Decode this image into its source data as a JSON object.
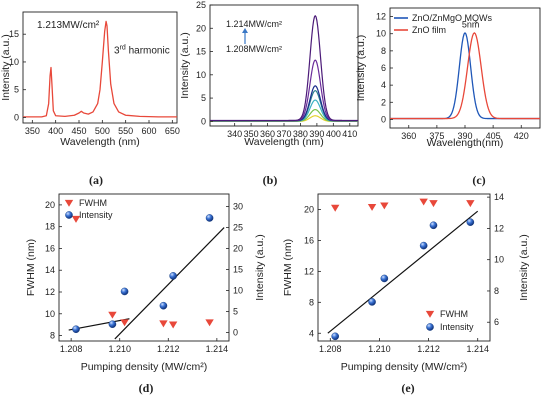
{
  "colors": {
    "red": "#e8483a",
    "blue": "#1f57b8",
    "navy": "#1a2c8c",
    "purple_dark": "#4b1a78",
    "purple": "#6a2c9a",
    "teal": "#2a7f8e",
    "cyan": "#3cb3c4",
    "green": "#79c24a",
    "yellow": "#e3d12c",
    "arrow": "#3a78c6"
  },
  "chart_data": [
    {
      "id": "a",
      "type": "line",
      "panel_label": "(a)",
      "xlabel": "Wavelength (nm)",
      "ylabel": "Intensity (a.u.)",
      "xlim": [
        330,
        660
      ],
      "ylim": [
        -1,
        19
      ],
      "xticks": [
        350,
        400,
        450,
        500,
        550,
        600,
        650
      ],
      "yticks": [
        0,
        5,
        10,
        15
      ],
      "annotation_power": "1.213MW/cm²",
      "annotation_harmonic_num": "3",
      "annotation_harmonic_sup": "rd",
      "annotation_harmonic_text": " harmonic",
      "series": [
        {
          "color": "#e8483a",
          "x": [
            330,
            370,
            380,
            385,
            388,
            390,
            392,
            395,
            400,
            420,
            440,
            450,
            455,
            460,
            470,
            480,
            490,
            495,
            500,
            505,
            508,
            510,
            513,
            518,
            525,
            535,
            550,
            580,
            620,
            660
          ],
          "y": [
            0.1,
            0.1,
            0.3,
            2.5,
            7.5,
            9.0,
            6.0,
            1.2,
            0.3,
            0.2,
            0.4,
            0.8,
            1.1,
            0.8,
            0.6,
            1.0,
            2.5,
            5.0,
            10.0,
            15.5,
            17.3,
            16.5,
            12.0,
            6.0,
            2.5,
            1.0,
            0.4,
            0.2,
            0.1,
            0.1
          ]
        }
      ]
    },
    {
      "id": "b",
      "type": "line",
      "panel_label": "(b)",
      "xlabel": "Wavelength (nm)",
      "ylabel": "Intensity (a.u.)",
      "xlim": [
        325,
        415
      ],
      "ylim": [
        -1,
        25
      ],
      "xticks": [
        340,
        350,
        360,
        370,
        380,
        390,
        400,
        410
      ],
      "yticks": [
        0,
        5,
        10,
        15,
        20,
        25
      ],
      "annotation_top": "1.214MW/cm²",
      "annotation_bottom": "1.208MW/cm²",
      "peak_center": 389,
      "peak_width": 3.2,
      "series": [
        {
          "color": "#e3d12c",
          "peak": 1.2
        },
        {
          "color": "#79c24a",
          "peak": 2.5
        },
        {
          "color": "#3cb3c4",
          "peak": 4.5
        },
        {
          "color": "#2a7f8e",
          "peak": 6.5
        },
        {
          "color": "#1a2c8c",
          "peak": 7.5
        },
        {
          "color": "#6a2c9a",
          "peak": 13.0
        },
        {
          "color": "#4b1a78",
          "peak": 22.5
        }
      ]
    },
    {
      "id": "c",
      "type": "line",
      "panel_label": "(c)",
      "xlabel": "Wavelength(nm)",
      "ylabel": "Intensity (a.u.)",
      "xlim": [
        350,
        430
      ],
      "ylim": [
        -1,
        13
      ],
      "xticks": [
        360,
        375,
        390,
        405,
        420
      ],
      "yticks": [
        0,
        2,
        4,
        6,
        8,
        10,
        12
      ],
      "annotation": "5nm",
      "legend": [
        "ZnO/ZnMgO MQWs",
        "ZnO film"
      ],
      "series": [
        {
          "name": "ZnO/ZnMgO MQWs",
          "color": "#1f57b8",
          "peak": 10.0,
          "center": 390,
          "width": 3.0
        },
        {
          "name": "ZnO film",
          "color": "#e8483a",
          "peak": 10.0,
          "center": 395,
          "width": 3.6
        }
      ]
    },
    {
      "id": "d",
      "type": "scatter",
      "panel_label": "(d)",
      "xlabel": "Pumping density (MW/cm²)",
      "ylabel_left": "FWHM (nm)",
      "ylabel_right": "Intensity (a.u.)",
      "xlim": [
        1.2075,
        1.2145
      ],
      "ylim_left": [
        7.5,
        21
      ],
      "ylim_right": [
        -2,
        33
      ],
      "xticks": [
        1.208,
        1.21,
        1.212,
        1.214
      ],
      "yticks_left": [
        8,
        10,
        12,
        14,
        16,
        18,
        20
      ],
      "yticks_right": [
        0,
        5,
        10,
        15,
        20,
        25,
        30
      ],
      "legend": [
        "FWHM",
        "Intensity"
      ],
      "fwhm": {
        "x": [
          1.2082,
          1.2097,
          1.2102,
          1.2118,
          1.2122,
          1.2137
        ],
        "y": [
          18.7,
          9.9,
          9.2,
          9.1,
          9.0,
          9.2
        ]
      },
      "intensity": {
        "x": [
          1.2082,
          1.2097,
          1.2102,
          1.2118,
          1.2122,
          1.2137
        ],
        "y": [
          0.8,
          2.0,
          9.8,
          6.4,
          13.5,
          27.3
        ]
      },
      "fit1": {
        "x": [
          1.2079,
          1.2104
        ],
        "y": [
          0.6,
          3.3
        ]
      },
      "fit2": {
        "x": [
          1.2098,
          1.2143
        ],
        "y": [
          -1.5,
          25.0
        ]
      }
    },
    {
      "id": "e",
      "type": "scatter",
      "panel_label": "(e)",
      "xlabel": "Pumping density (MW/cm²)",
      "ylabel_left": "FWHM (nm)",
      "ylabel_right": "Intensity (a.u.)",
      "xlim": [
        1.2075,
        1.2145
      ],
      "ylim_left": [
        3,
        22
      ],
      "ylim_right": [
        4.8,
        14.2
      ],
      "xticks": [
        1.208,
        1.21,
        1.212,
        1.214
      ],
      "yticks_left": [
        4,
        8,
        12,
        16,
        20
      ],
      "yticks_right": [
        6,
        8,
        10,
        12,
        14
      ],
      "legend": [
        "FWHM",
        "Intensity"
      ],
      "fwhm": {
        "x": [
          1.2082,
          1.2097,
          1.2102,
          1.2118,
          1.2122,
          1.2137
        ],
        "y": [
          20.2,
          20.3,
          20.5,
          21.0,
          20.8,
          20.8
        ]
      },
      "intensity": {
        "x": [
          1.2082,
          1.2097,
          1.2102,
          1.2118,
          1.2122,
          1.2137
        ],
        "y": [
          5.1,
          7.3,
          8.8,
          10.9,
          12.2,
          12.4
        ]
      },
      "fit": {
        "x": [
          1.2079,
          1.214
        ],
        "y": [
          5.3,
          13.1
        ]
      }
    }
  ]
}
